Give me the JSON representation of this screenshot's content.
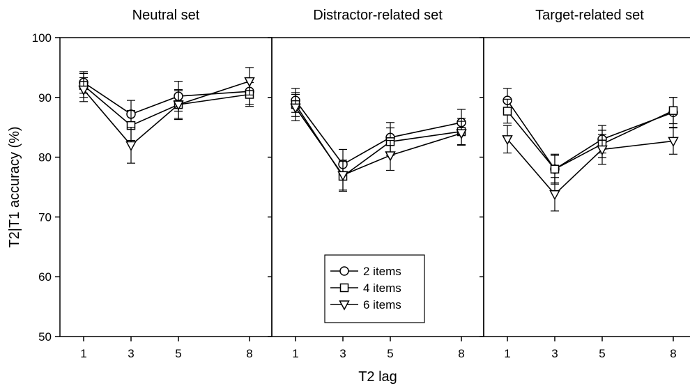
{
  "chart_data": {
    "type": "line",
    "ylabel": "T2|T1 accuracy (%)",
    "xlabel": "T2 lag",
    "ylim": [
      50,
      100
    ],
    "yticks": [
      50,
      60,
      70,
      80,
      90,
      100
    ],
    "x": [
      1,
      3,
      5,
      8
    ],
    "grid": false,
    "legend_placement": "bottom-center of middle panel",
    "legend": [
      {
        "label": "2 items",
        "marker": "circle"
      },
      {
        "label": "4 items",
        "marker": "square"
      },
      {
        "label": "6 items",
        "marker": "triangle-down"
      }
    ],
    "panels": [
      {
        "title": "Neutral set",
        "series": [
          {
            "name": "2 items",
            "marker": "circle",
            "values": [
              92.5,
              87.2,
              90.2,
              91.0
            ],
            "err": [
              1.8,
              2.3,
              2.5,
              2.2
            ]
          },
          {
            "name": "4 items",
            "marker": "square",
            "values": [
              92.0,
              85.3,
              88.8,
              90.5
            ],
            "err": [
              2.0,
              2.5,
              2.3,
              2.0
            ]
          },
          {
            "name": "6 items",
            "marker": "triangle-down",
            "values": [
              91.3,
              82.0,
              88.8,
              92.7
            ],
            "err": [
              2.0,
              3.0,
              2.5,
              2.3
            ]
          }
        ]
      },
      {
        "title": "Distractor-related set",
        "series": [
          {
            "name": "2 items",
            "marker": "circle",
            "values": [
              89.5,
              78.8,
              83.3,
              85.8
            ],
            "err": [
              2.0,
              2.5,
              2.5,
              2.2
            ]
          },
          {
            "name": "4 items",
            "marker": "square",
            "values": [
              88.8,
              76.8,
              82.6,
              84.3
            ],
            "err": [
              2.0,
              2.5,
              2.3,
              2.2
            ]
          },
          {
            "name": "6 items",
            "marker": "triangle-down",
            "values": [
              88.3,
              77.0,
              80.3,
              84.0
            ],
            "err": [
              2.2,
              2.5,
              2.5,
              2.0
            ]
          }
        ]
      },
      {
        "title": "Target-related set",
        "series": [
          {
            "name": "2 items",
            "marker": "circle",
            "values": [
              89.5,
              78.0,
              83.0,
              87.5
            ],
            "err": [
              2.0,
              2.5,
              2.3,
              2.5
            ]
          },
          {
            "name": "4 items",
            "marker": "square",
            "values": [
              87.7,
              78.0,
              82.2,
              87.8
            ],
            "err": [
              2.0,
              2.3,
              2.3,
              2.2
            ]
          },
          {
            "name": "6 items",
            "marker": "triangle-down",
            "values": [
              83.0,
              73.8,
              81.3,
              82.7
            ],
            "err": [
              2.3,
              2.8,
              2.5,
              2.2
            ]
          }
        ]
      }
    ]
  }
}
